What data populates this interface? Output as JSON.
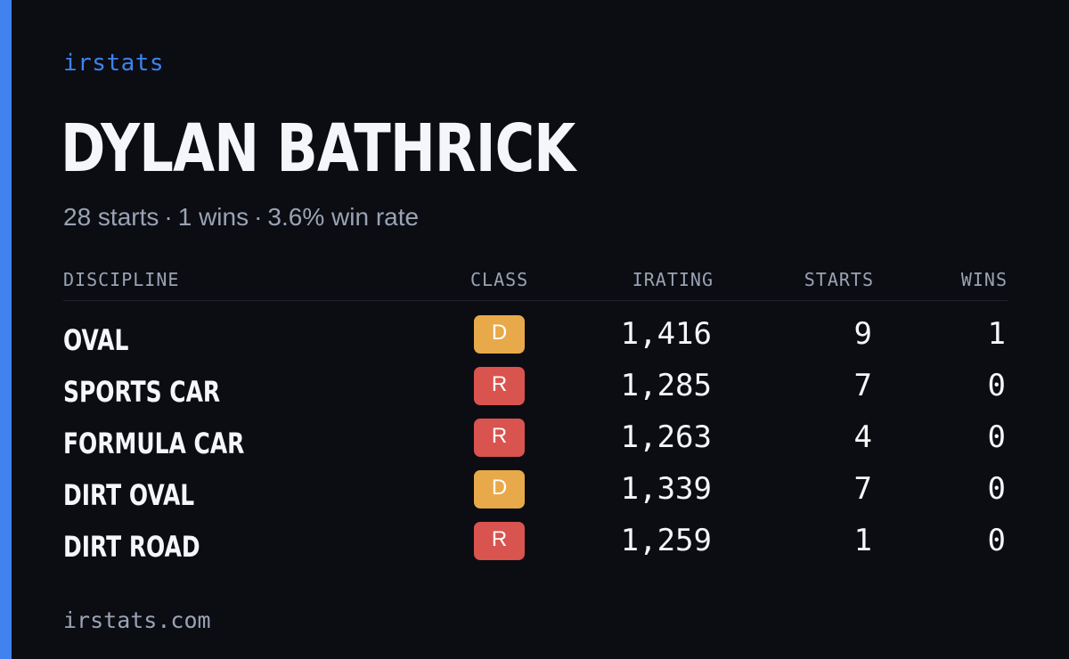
{
  "brand": "irstats",
  "driver": {
    "name": "DYLAN BATHRICK",
    "starts_text": "28 starts",
    "wins_text": "1 wins",
    "winrate_text": "3.6% win rate",
    "separator": "·"
  },
  "table": {
    "headers": {
      "discipline": "DISCIPLINE",
      "class": "CLASS",
      "irating": "IRATING",
      "starts": "STARTS",
      "wins": "WINS"
    },
    "rows": [
      {
        "discipline": "OVAL",
        "class": "D",
        "irating": "1,416",
        "starts": "9",
        "wins": "1"
      },
      {
        "discipline": "SPORTS CAR",
        "class": "R",
        "irating": "1,285",
        "starts": "7",
        "wins": "0"
      },
      {
        "discipline": "FORMULA CAR",
        "class": "R",
        "irating": "1,263",
        "starts": "4",
        "wins": "0"
      },
      {
        "discipline": "DIRT OVAL",
        "class": "D",
        "irating": "1,339",
        "starts": "7",
        "wins": "0"
      },
      {
        "discipline": "DIRT ROAD",
        "class": "R",
        "irating": "1,259",
        "starts": "1",
        "wins": "0"
      }
    ]
  },
  "footer": "irstats.com",
  "colors": {
    "accent": "#3f82f0",
    "background": "#0b0d13",
    "class_D": "#e8a94a",
    "class_R": "#d9534f",
    "muted_text": "#9aa3b4",
    "primary_text": "#f4f6fa"
  }
}
